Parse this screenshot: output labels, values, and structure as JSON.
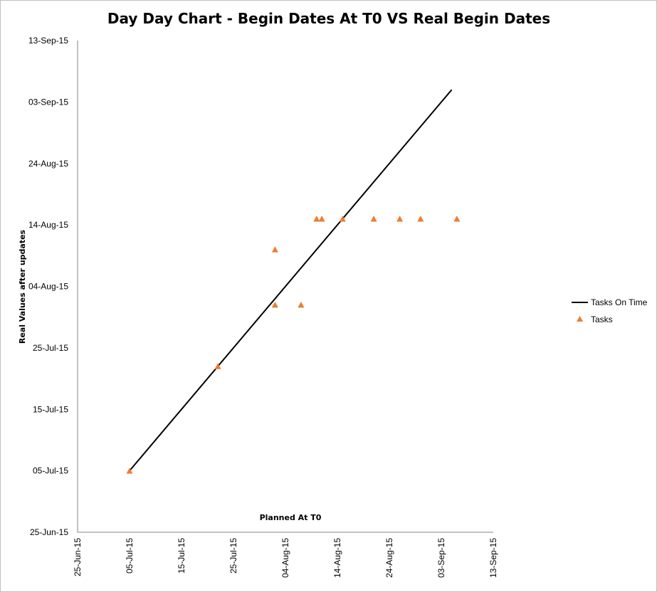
{
  "chart_data": {
    "type": "scatter",
    "title": "Day Day Chart - Begin Dates At T0 VS Real Begin Dates",
    "xlabel": "Planned At T0",
    "ylabel": "Real Values after updates",
    "x_ticks": [
      "25-Jun-15",
      "05-Jul-15",
      "15-Jul-15",
      "25-Jul-15",
      "04-Aug-15",
      "14-Aug-15",
      "24-Aug-15",
      "03-Sep-15",
      "13-Sep-15"
    ],
    "y_ticks": [
      "25-Jun-15",
      "05-Jul-15",
      "15-Jul-15",
      "25-Jul-15",
      "04-Aug-15",
      "14-Aug-15",
      "24-Aug-15",
      "03-Sep-15",
      "13-Sep-15"
    ],
    "xlim": [
      "2015-06-25",
      "2015-09-13"
    ],
    "ylim": [
      "2015-06-25",
      "2015-09-13"
    ],
    "grid": false,
    "legend_position": "right",
    "series": [
      {
        "name": "Tasks On Time",
        "type": "line",
        "color": "#000000",
        "points": [
          {
            "x": "2015-07-05",
            "y": "2015-07-05"
          },
          {
            "x": "2015-09-05",
            "y": "2015-09-05"
          }
        ]
      },
      {
        "name": "Tasks",
        "type": "scatter",
        "marker": "triangle",
        "color": "#ED7D31",
        "points": [
          {
            "x": "2015-07-05",
            "y": "2015-07-05"
          },
          {
            "x": "2015-07-22",
            "y": "2015-07-22"
          },
          {
            "x": "2015-08-02",
            "y": "2015-08-01"
          },
          {
            "x": "2015-08-02",
            "y": "2015-08-10"
          },
          {
            "x": "2015-08-07",
            "y": "2015-08-01"
          },
          {
            "x": "2015-08-10",
            "y": "2015-08-15"
          },
          {
            "x": "2015-08-11",
            "y": "2015-08-15"
          },
          {
            "x": "2015-08-15",
            "y": "2015-08-15"
          },
          {
            "x": "2015-08-21",
            "y": "2015-08-15"
          },
          {
            "x": "2015-08-26",
            "y": "2015-08-15"
          },
          {
            "x": "2015-08-30",
            "y": "2015-08-15"
          },
          {
            "x": "2015-09-06",
            "y": "2015-08-15"
          }
        ]
      }
    ]
  }
}
